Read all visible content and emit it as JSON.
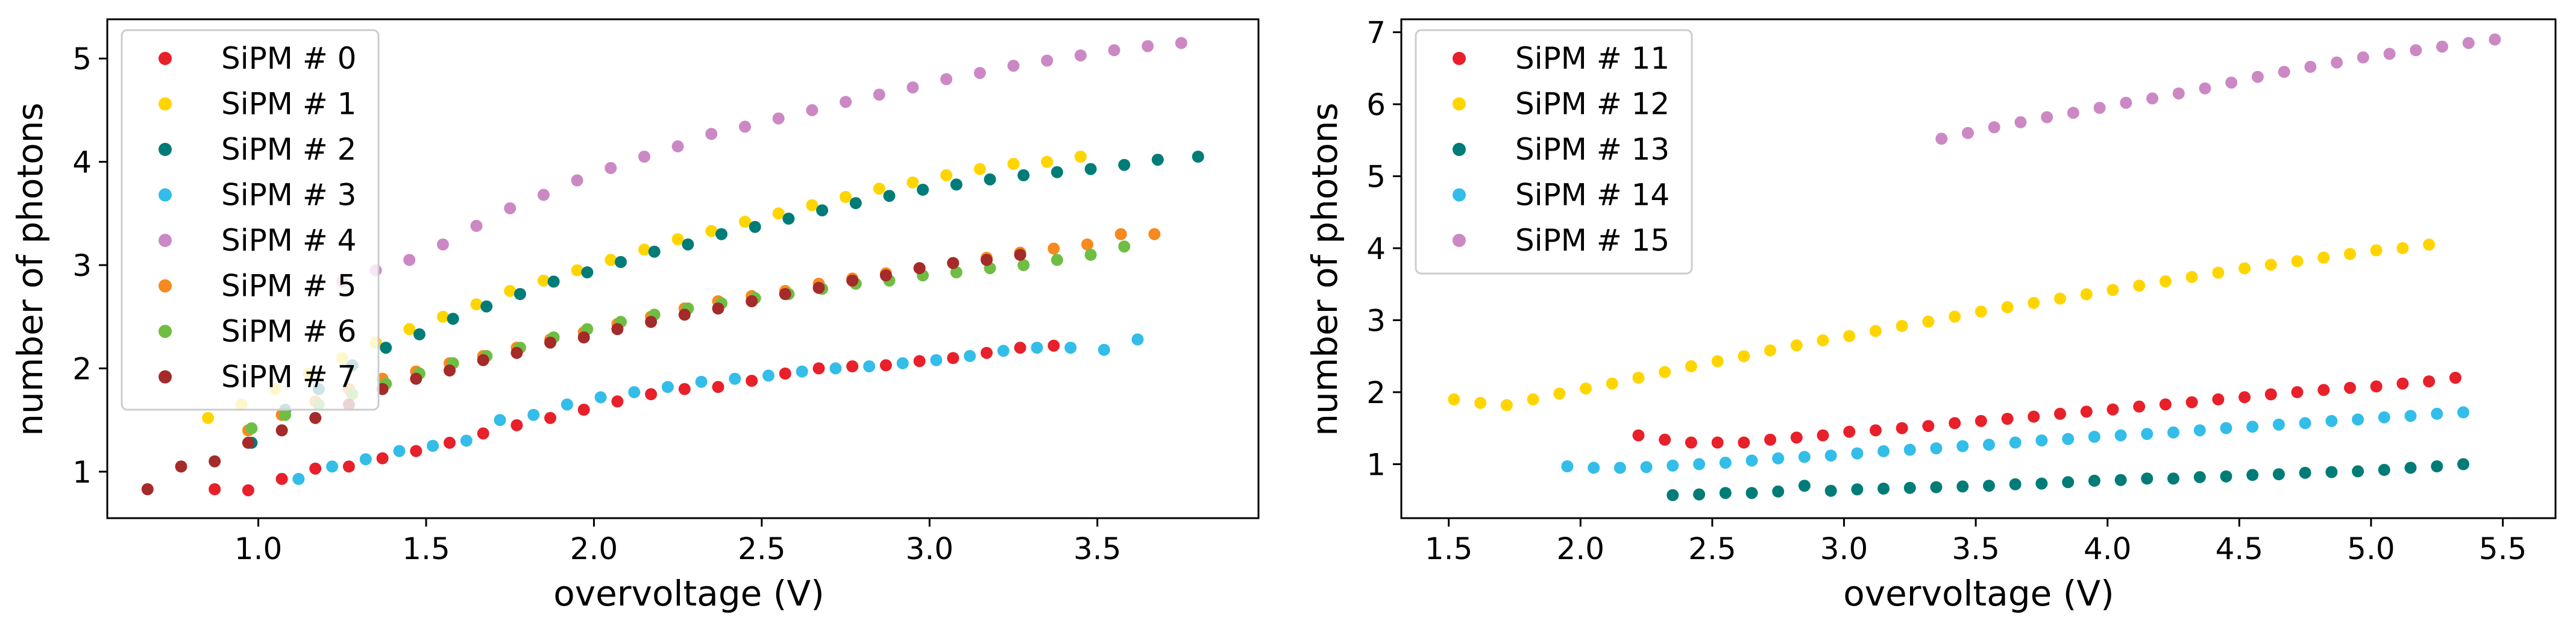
{
  "chart_data": [
    {
      "type": "scatter",
      "xlabel": "overvoltage (V)",
      "ylabel": "number of photons",
      "xlim": [
        0.55,
        3.98
      ],
      "ylim": [
        0.55,
        5.38
      ],
      "xticks": [
        1.0,
        1.5,
        2.0,
        2.5,
        3.0,
        3.5
      ],
      "xtick_labels": [
        "1.0",
        "1.5",
        "2.0",
        "2.5",
        "3.0",
        "3.5"
      ],
      "yticks": [
        1,
        2,
        3,
        4,
        5
      ],
      "ytick_labels": [
        "1",
        "2",
        "3",
        "4",
        "5"
      ],
      "legend": "top-left",
      "grid": false,
      "series": [
        {
          "name": "SiPM # 0",
          "color": "#e8202a",
          "x": [
            0.87,
            0.97,
            1.07,
            1.17,
            1.27,
            1.37,
            1.47,
            1.57,
            1.67,
            1.77,
            1.87,
            1.97,
            2.07,
            2.17,
            2.27,
            2.37,
            2.47,
            2.57,
            2.67,
            2.77,
            2.87,
            2.97,
            3.07,
            3.17,
            3.27,
            3.37
          ],
          "y": [
            0.83,
            0.82,
            0.93,
            1.03,
            1.05,
            1.13,
            1.2,
            1.28,
            1.37,
            1.45,
            1.52,
            1.6,
            1.68,
            1.75,
            1.8,
            1.82,
            1.88,
            1.95,
            2.0,
            2.02,
            2.03,
            2.07,
            2.1,
            2.15,
            2.2,
            2.22
          ]
        },
        {
          "name": "SiPM # 1",
          "color": "#ffd500",
          "x": [
            0.85,
            0.95,
            1.05,
            1.15,
            1.25,
            1.35,
            1.45,
            1.55,
            1.65,
            1.75,
            1.85,
            1.95,
            2.05,
            2.15,
            2.25,
            2.35,
            2.45,
            2.55,
            2.65,
            2.75,
            2.85,
            2.95,
            3.05,
            3.15,
            3.25,
            3.35,
            3.45
          ],
          "y": [
            1.52,
            1.65,
            1.8,
            1.95,
            2.1,
            2.25,
            2.38,
            2.5,
            2.62,
            2.75,
            2.85,
            2.95,
            3.05,
            3.15,
            3.25,
            3.33,
            3.42,
            3.5,
            3.58,
            3.66,
            3.74,
            3.8,
            3.87,
            3.93,
            3.98,
            4.0,
            4.05
          ]
        },
        {
          "name": "SiPM # 2",
          "color": "#007c78",
          "x": [
            0.98,
            1.08,
            1.18,
            1.28,
            1.38,
            1.48,
            1.58,
            1.68,
            1.78,
            1.88,
            1.98,
            2.08,
            2.18,
            2.28,
            2.38,
            2.48,
            2.58,
            2.68,
            2.78,
            2.88,
            2.98,
            3.08,
            3.18,
            3.28,
            3.38,
            3.48,
            3.58,
            3.68,
            3.8
          ],
          "y": [
            1.28,
            1.6,
            1.8,
            2.03,
            2.2,
            2.33,
            2.48,
            2.6,
            2.72,
            2.84,
            2.93,
            3.03,
            3.13,
            3.2,
            3.3,
            3.37,
            3.45,
            3.53,
            3.6,
            3.67,
            3.73,
            3.78,
            3.83,
            3.87,
            3.9,
            3.93,
            3.97,
            4.02,
            4.05
          ]
        },
        {
          "name": "SiPM # 3",
          "color": "#33bde9",
          "x": [
            1.12,
            1.22,
            1.32,
            1.42,
            1.52,
            1.62,
            1.72,
            1.82,
            1.92,
            2.02,
            2.12,
            2.22,
            2.32,
            2.42,
            2.52,
            2.62,
            2.72,
            2.82,
            2.92,
            3.02,
            3.12,
            3.22,
            3.32,
            3.42,
            3.52,
            3.62
          ],
          "y": [
            0.93,
            1.05,
            1.12,
            1.2,
            1.25,
            1.3,
            1.5,
            1.55,
            1.65,
            1.72,
            1.77,
            1.82,
            1.87,
            1.9,
            1.93,
            1.97,
            2.0,
            2.02,
            2.05,
            2.08,
            2.12,
            2.17,
            2.2,
            2.2,
            2.18,
            2.28
          ]
        },
        {
          "name": "SiPM # 4",
          "color": "#cc88c4",
          "x": [
            1.25,
            1.35,
            1.45,
            1.55,
            1.65,
            1.75,
            1.85,
            1.95,
            2.05,
            2.15,
            2.25,
            2.35,
            2.45,
            2.55,
            2.65,
            2.75,
            2.85,
            2.95,
            3.05,
            3.15,
            3.25,
            3.35,
            3.45,
            3.55,
            3.65,
            3.75
          ],
          "y": [
            2.84,
            2.95,
            3.05,
            3.2,
            3.38,
            3.55,
            3.68,
            3.82,
            3.94,
            4.05,
            4.15,
            4.27,
            4.34,
            4.42,
            4.5,
            4.58,
            4.65,
            4.72,
            4.8,
            4.86,
            4.93,
            4.98,
            5.03,
            5.08,
            5.12,
            5.15
          ]
        },
        {
          "name": "SiPM # 5",
          "color": "#f68a1e",
          "x": [
            0.97,
            1.07,
            1.17,
            1.27,
            1.37,
            1.47,
            1.57,
            1.67,
            1.77,
            1.87,
            1.97,
            2.07,
            2.17,
            2.27,
            2.37,
            2.47,
            2.57,
            2.67,
            2.77,
            2.87,
            2.97,
            3.07,
            3.17,
            3.27,
            3.37,
            3.47,
            3.57,
            3.67
          ],
          "y": [
            1.4,
            1.55,
            1.68,
            1.8,
            1.9,
            1.97,
            2.05,
            2.12,
            2.2,
            2.28,
            2.35,
            2.43,
            2.5,
            2.58,
            2.65,
            2.7,
            2.75,
            2.82,
            2.87,
            2.92,
            2.97,
            3.02,
            3.07,
            3.12,
            3.16,
            3.2,
            3.3,
            3.3
          ]
        },
        {
          "name": "SiPM # 6",
          "color": "#6ebe44",
          "x": [
            0.98,
            1.08,
            1.18,
            1.28,
            1.38,
            1.48,
            1.58,
            1.68,
            1.78,
            1.88,
            1.98,
            2.08,
            2.18,
            2.28,
            2.38,
            2.48,
            2.58,
            2.68,
            2.78,
            2.88,
            2.98,
            3.08,
            3.18,
            3.28,
            3.38,
            3.48,
            3.58
          ],
          "y": [
            1.42,
            1.55,
            1.65,
            1.75,
            1.85,
            1.95,
            2.05,
            2.12,
            2.2,
            2.3,
            2.38,
            2.45,
            2.52,
            2.58,
            2.63,
            2.68,
            2.72,
            2.77,
            2.82,
            2.85,
            2.9,
            2.93,
            2.97,
            3.0,
            3.05,
            3.1,
            3.18
          ]
        },
        {
          "name": "SiPM # 7",
          "color": "#a52a2a",
          "x": [
            0.67,
            0.77,
            0.87,
            0.97,
            1.07,
            1.17,
            1.27,
            1.37,
            1.47,
            1.57,
            1.67,
            1.77,
            1.87,
            1.97,
            2.07,
            2.17,
            2.27,
            2.37,
            2.47,
            2.57,
            2.67,
            2.77,
            2.87,
            2.97,
            3.07,
            3.17,
            3.27
          ],
          "y": [
            0.83,
            1.05,
            1.1,
            1.28,
            1.4,
            1.52,
            1.65,
            1.8,
            1.9,
            1.98,
            2.08,
            2.15,
            2.25,
            2.3,
            2.38,
            2.45,
            2.52,
            2.58,
            2.65,
            2.72,
            2.78,
            2.85,
            2.9,
            2.97,
            3.02,
            3.05,
            3.1
          ]
        }
      ]
    },
    {
      "type": "scatter",
      "xlabel": "overvoltage (V)",
      "ylabel": "number of photons",
      "xlim": [
        1.32,
        5.7
      ],
      "ylim": [
        0.25,
        7.18
      ],
      "xticks": [
        1.5,
        2.0,
        2.5,
        3.0,
        3.5,
        4.0,
        4.5,
        5.0,
        5.5
      ],
      "xtick_labels": [
        "1.5",
        "2.0",
        "2.5",
        "3.0",
        "3.5",
        "4.0",
        "4.5",
        "5.0",
        "5.5"
      ],
      "yticks": [
        1,
        2,
        3,
        4,
        5,
        6,
        7
      ],
      "ytick_labels": [
        "1",
        "2",
        "3",
        "4",
        "5",
        "6",
        "7"
      ],
      "legend": "top-left",
      "grid": false,
      "series": [
        {
          "name": "SiPM # 11",
          "color": "#e8202a",
          "x": [
            2.22,
            2.32,
            2.42,
            2.52,
            2.62,
            2.72,
            2.82,
            2.92,
            3.02,
            3.12,
            3.22,
            3.32,
            3.42,
            3.52,
            3.62,
            3.72,
            3.82,
            3.92,
            4.02,
            4.12,
            4.22,
            4.32,
            4.42,
            4.52,
            4.62,
            4.72,
            4.82,
            4.92,
            5.02,
            5.12,
            5.22,
            5.32
          ],
          "y": [
            1.4,
            1.34,
            1.3,
            1.3,
            1.3,
            1.34,
            1.37,
            1.4,
            1.45,
            1.47,
            1.5,
            1.53,
            1.57,
            1.6,
            1.63,
            1.66,
            1.7,
            1.73,
            1.76,
            1.8,
            1.83,
            1.86,
            1.9,
            1.93,
            1.97,
            2.0,
            2.03,
            2.06,
            2.08,
            2.12,
            2.15,
            2.2
          ]
        },
        {
          "name": "SiPM # 12",
          "color": "#ffd500",
          "x": [
            1.52,
            1.62,
            1.72,
            1.82,
            1.92,
            2.02,
            2.12,
            2.22,
            2.32,
            2.42,
            2.52,
            2.62,
            2.72,
            2.82,
            2.92,
            3.02,
            3.12,
            3.22,
            3.32,
            3.42,
            3.52,
            3.62,
            3.72,
            3.82,
            3.92,
            4.02,
            4.12,
            4.22,
            4.32,
            4.42,
            4.52,
            4.62,
            4.72,
            4.82,
            4.92,
            5.02,
            5.12,
            5.22
          ],
          "y": [
            1.9,
            1.85,
            1.82,
            1.9,
            1.98,
            2.05,
            2.12,
            2.2,
            2.28,
            2.36,
            2.43,
            2.5,
            2.58,
            2.65,
            2.72,
            2.78,
            2.85,
            2.92,
            2.98,
            3.05,
            3.12,
            3.18,
            3.24,
            3.3,
            3.36,
            3.42,
            3.48,
            3.54,
            3.6,
            3.66,
            3.72,
            3.77,
            3.82,
            3.87,
            3.92,
            3.97,
            4.0,
            4.05
          ]
        },
        {
          "name": "SiPM # 13",
          "color": "#007c78",
          "x": [
            2.35,
            2.45,
            2.55,
            2.65,
            2.75,
            2.85,
            2.95,
            3.05,
            3.15,
            3.25,
            3.35,
            3.45,
            3.55,
            3.65,
            3.75,
            3.85,
            3.95,
            4.05,
            4.15,
            4.25,
            4.35,
            4.45,
            4.55,
            4.65,
            4.75,
            4.85,
            4.95,
            5.05,
            5.15,
            5.25,
            5.35
          ],
          "y": [
            0.57,
            0.58,
            0.6,
            0.6,
            0.62,
            0.7,
            0.63,
            0.65,
            0.66,
            0.67,
            0.68,
            0.69,
            0.7,
            0.72,
            0.73,
            0.75,
            0.77,
            0.78,
            0.8,
            0.8,
            0.82,
            0.83,
            0.85,
            0.86,
            0.88,
            0.89,
            0.9,
            0.92,
            0.95,
            0.97,
            1.0
          ]
        },
        {
          "name": "SiPM # 14",
          "color": "#33bde9",
          "x": [
            1.95,
            2.05,
            2.15,
            2.25,
            2.35,
            2.45,
            2.55,
            2.65,
            2.75,
            2.85,
            2.95,
            3.05,
            3.15,
            3.25,
            3.35,
            3.45,
            3.55,
            3.65,
            3.75,
            3.85,
            3.95,
            4.05,
            4.15,
            4.25,
            4.35,
            4.45,
            4.55,
            4.65,
            4.75,
            4.85,
            4.95,
            5.05,
            5.15,
            5.25,
            5.35
          ],
          "y": [
            0.97,
            0.95,
            0.95,
            0.96,
            0.98,
            1.0,
            1.02,
            1.05,
            1.08,
            1.1,
            1.12,
            1.15,
            1.18,
            1.2,
            1.22,
            1.25,
            1.27,
            1.3,
            1.33,
            1.35,
            1.38,
            1.4,
            1.42,
            1.44,
            1.47,
            1.5,
            1.52,
            1.55,
            1.57,
            1.6,
            1.62,
            1.65,
            1.67,
            1.7,
            1.72
          ]
        },
        {
          "name": "SiPM # 15",
          "color": "#cc88c4",
          "x": [
            3.37,
            3.47,
            3.57,
            3.67,
            3.77,
            3.87,
            3.97,
            4.07,
            4.17,
            4.27,
            4.37,
            4.47,
            4.57,
            4.67,
            4.77,
            4.87,
            4.97,
            5.07,
            5.17,
            5.27,
            5.37,
            5.47
          ],
          "y": [
            5.52,
            5.6,
            5.68,
            5.75,
            5.82,
            5.88,
            5.95,
            6.02,
            6.08,
            6.15,
            6.22,
            6.3,
            6.38,
            6.45,
            6.52,
            6.58,
            6.65,
            6.7,
            6.75,
            6.8,
            6.85,
            6.9
          ]
        }
      ]
    }
  ]
}
